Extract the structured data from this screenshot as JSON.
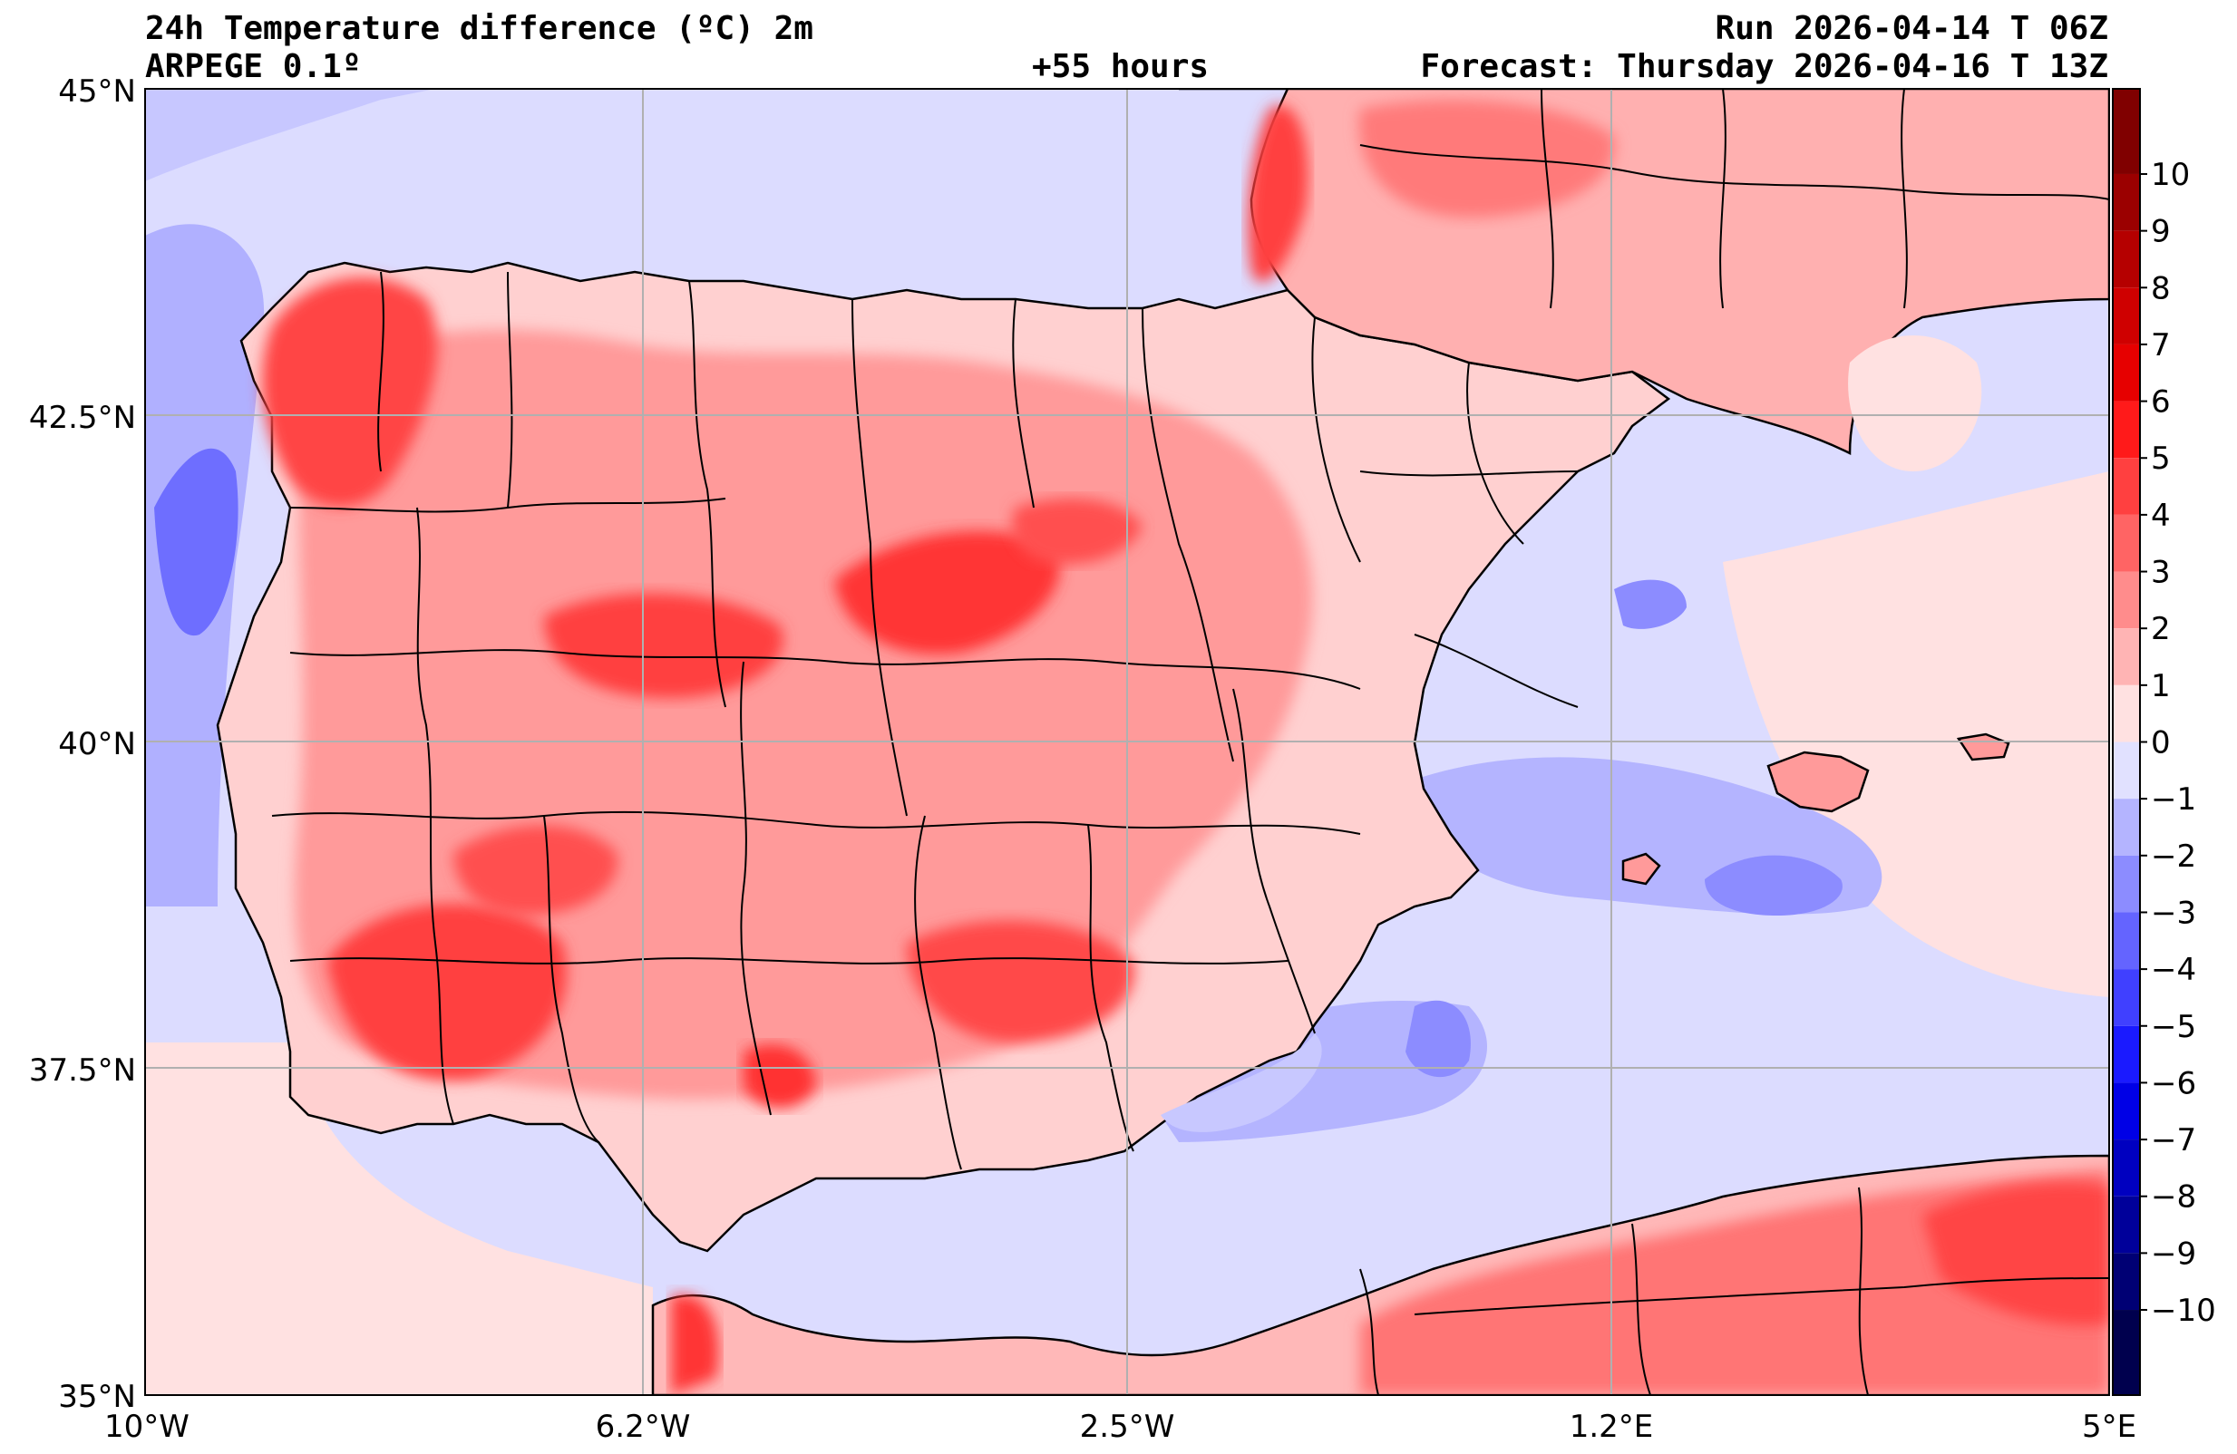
{
  "header": {
    "title": "24h Temperature difference (ºC) 2m",
    "model": "ARPEGE 0.1º",
    "lead_time": "+55 hours",
    "run": "Run 2026-04-14 T 06Z",
    "forecast": "Forecast: Thursday 2026-04-16 T 13Z"
  },
  "map": {
    "variable": "24h 2m temperature difference",
    "units": "ºC",
    "extent": {
      "lon_min": -10,
      "lon_max": 5,
      "lat_min": 35,
      "lat_max": 45
    },
    "lat_ticks": [
      "35°N",
      "37.5°N",
      "40°N",
      "42.5°N",
      "45°N"
    ],
    "lon_ticks": [
      "10°W",
      "6.2°W",
      "2.5°W",
      "1.2°E",
      "5°E"
    ],
    "gridlines": true
  },
  "colorbar": {
    "levels": [
      "10",
      "9",
      "8",
      "7",
      "6",
      "5",
      "4",
      "3",
      "2",
      "1",
      "0",
      "−1",
      "−2",
      "−3",
      "−4",
      "−5",
      "−6",
      "−7",
      "−8",
      "−9",
      "−10"
    ],
    "colors_warm": [
      "#800000",
      "#9b0000",
      "#b50000",
      "#cf0000",
      "#e60000",
      "#ff1a1a",
      "#ff4040",
      "#ff6464",
      "#ff8c8c",
      "#ffb4b4",
      "#ffe1e1"
    ],
    "colors_cold": [
      "#e1e1ff",
      "#b4b4ff",
      "#8c8cff",
      "#6464ff",
      "#4040ff",
      "#1a1aff",
      "#0000e6",
      "#0000c0",
      "#00009a",
      "#000074",
      "#00004e"
    ]
  },
  "colors": {
    "ocean": "#dcdcff",
    "land_base": "#ffd4d4",
    "land_warm": "#ff9090",
    "land_hot": "#ff4a4a",
    "sea_cool": "#b8b8ff",
    "sea_cold": "#7a7aff"
  }
}
